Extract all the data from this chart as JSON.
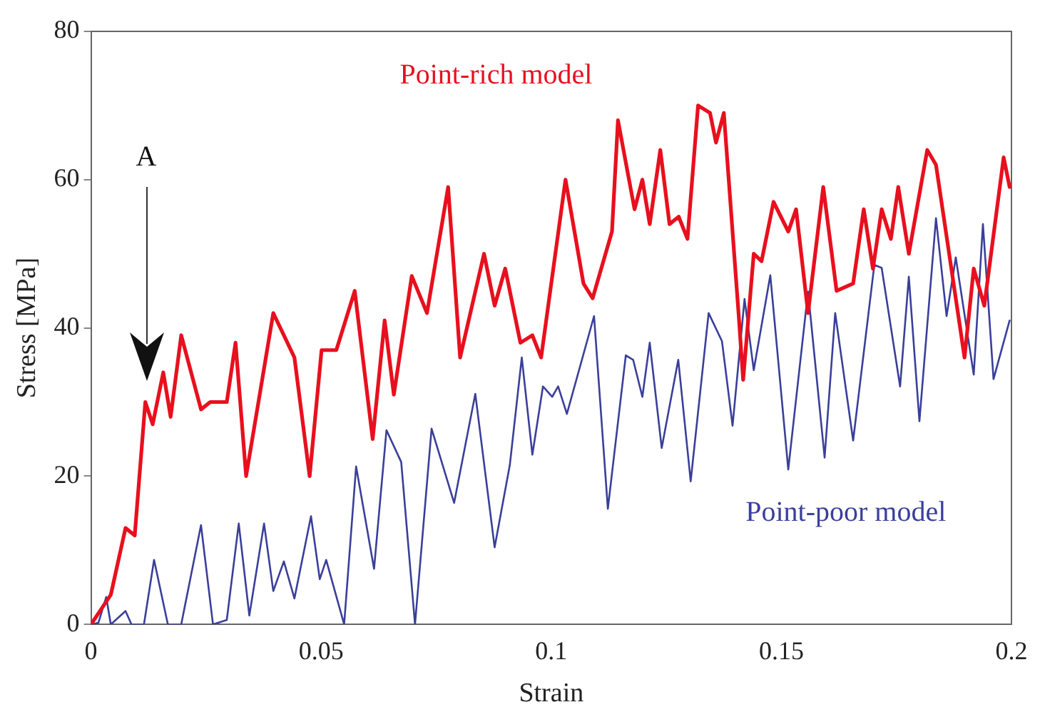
{
  "chart_data": {
    "type": "line",
    "xlabel": "Strain",
    "ylabel": "Stress [MPa]",
    "xlim": [
      0,
      0.2
    ],
    "ylim": [
      0,
      80
    ],
    "xticks": [
      0,
      0.05,
      0.1,
      0.15,
      0.2
    ],
    "yticks": [
      0,
      20,
      40,
      60,
      80
    ],
    "grid": false,
    "legend": false,
    "marker": "none",
    "line_style": "solid",
    "annotations": [
      "A"
    ],
    "series": [
      {
        "name": "Point-rich model",
        "color": "#e8101e",
        "x": [
          0,
          0.0043,
          0.0075,
          0.0095,
          0.0118,
          0.0134,
          0.0157,
          0.0173,
          0.0196,
          0.0239,
          0.0259,
          0.0295,
          0.0314,
          0.0337,
          0.0396,
          0.0419,
          0.0442,
          0.0475,
          0.0501,
          0.0533,
          0.0573,
          0.0612,
          0.0638,
          0.0658,
          0.0697,
          0.073,
          0.0776,
          0.0802,
          0.0854,
          0.0877,
          0.09,
          0.0933,
          0.0959,
          0.0978,
          0.1031,
          0.107,
          0.109,
          0.1132,
          0.1145,
          0.1181,
          0.1198,
          0.1214,
          0.1237,
          0.1257,
          0.1277,
          0.1296,
          0.1319,
          0.1345,
          0.1358,
          0.1375,
          0.1407,
          0.1417,
          0.144,
          0.1457,
          0.1483,
          0.1515,
          0.1532,
          0.1558,
          0.1591,
          0.162,
          0.1656,
          0.1679,
          0.1699,
          0.1718,
          0.1738,
          0.1754,
          0.1777,
          0.1817,
          0.1836,
          0.1898,
          0.1918,
          0.1941,
          0.1983,
          0.1996
        ],
        "values": [
          0,
          4,
          13,
          12,
          30,
          27,
          34,
          28,
          39,
          29,
          30,
          30,
          38,
          20,
          42,
          39,
          36,
          20,
          37,
          37,
          45,
          25,
          41,
          31,
          47,
          42,
          59,
          36,
          50,
          43,
          48,
          38,
          39,
          36,
          60,
          46,
          44,
          53,
          68,
          56,
          60,
          54,
          64,
          54,
          55,
          52,
          70,
          69,
          65,
          69,
          42,
          33,
          50,
          49,
          57,
          53,
          56,
          42,
          59,
          45,
          46,
          56,
          48,
          56,
          52,
          59,
          50,
          64,
          62,
          36,
          48,
          43,
          63,
          59
        ]
      },
      {
        "name": "Point-poor model",
        "color": "#3a3f9a",
        "x": [
          0,
          0.0016,
          0.0033,
          0.0043,
          0.0075,
          0.0088,
          0.0115,
          0.0137,
          0.0167,
          0.0196,
          0.0239,
          0.0265,
          0.0295,
          0.0321,
          0.0344,
          0.0376,
          0.0396,
          0.0419,
          0.0442,
          0.0478,
          0.0497,
          0.0511,
          0.055,
          0.0576,
          0.0615,
          0.0642,
          0.0674,
          0.0704,
          0.074,
          0.0789,
          0.0835,
          0.0877,
          0.091,
          0.0936,
          0.0959,
          0.0982,
          0.1002,
          0.1015,
          0.1034,
          0.1093,
          0.1123,
          0.1162,
          0.1178,
          0.1198,
          0.1214,
          0.124,
          0.1276,
          0.1303,
          0.1342,
          0.1371,
          0.1394,
          0.142,
          0.144,
          0.1476,
          0.1515,
          0.1558,
          0.1594,
          0.1617,
          0.1656,
          0.1702,
          0.1718,
          0.1758,
          0.1777,
          0.18,
          0.1836,
          0.1859,
          0.1879,
          0.1918,
          0.1938,
          0.1961,
          0.1996
        ],
        "values": [
          0,
          0.2,
          3.7,
          0,
          1.8,
          0,
          0,
          8.7,
          0,
          0,
          13.4,
          0,
          0.6,
          13.6,
          1.2,
          13.6,
          4.5,
          8.5,
          3.5,
          14.6,
          6.1,
          8.7,
          0,
          21.3,
          7.5,
          26.2,
          21.9,
          0,
          26.4,
          16.4,
          31.1,
          10.4,
          21.5,
          36,
          22.9,
          32.1,
          30.7,
          32.1,
          28.4,
          41.6,
          15.6,
          36.3,
          35.7,
          30.7,
          38,
          23.8,
          35.7,
          19.3,
          42,
          38.2,
          26.8,
          43.9,
          34.3,
          47.1,
          20.9,
          44.9,
          22.5,
          42,
          24.8,
          48.5,
          48.1,
          32.1,
          46.9,
          27.4,
          54.8,
          41.6,
          49.5,
          33.7,
          54,
          33.1,
          41
        ]
      }
    ]
  }
}
